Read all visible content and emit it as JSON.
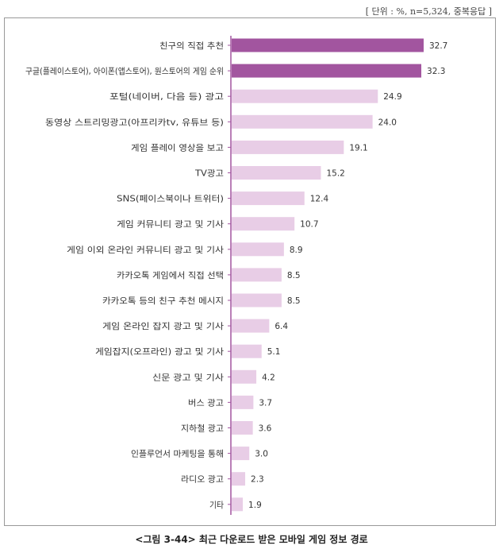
{
  "unit_note": "[ 단위 : %, n=5,324, 중복응답 ]",
  "caption": "<그림 3-44> 최근 다운로드 받은 모바일 게임 정보 경로",
  "colors": {
    "highlight": "#a2559f",
    "normal": "#e8cde6",
    "axis": "#a2559f"
  },
  "chart_data": {
    "type": "bar",
    "orientation": "horizontal",
    "categories": [
      "친구의 직접 추천",
      "구글(플레이스토어), 아이폰(앱스토어), 원스토어의 게임 순위",
      "포털(네이버, 다음 등) 광고",
      "동영상 스트리밍광고(아프리카tv, 유튜브 등)",
      "게임 플레이 영상을 보고",
      "TV광고",
      "SNS(페이스북이나 트위터)",
      "게임 커뮤니티 광고 및 기사",
      "게임 이외 온라인 커뮤니티 광고 및 기사",
      "카카오톡 게임에서 직접 선택",
      "카카오톡 등의 친구 추천 메시지",
      "게임 온라인 잡지 광고 및 기사",
      "게임잡지(오프라인) 광고 및 기사",
      "신문 광고 및 기사",
      "버스 광고",
      "지하철 광고",
      "인플루언서 마케팅을 통해",
      "라디오 광고",
      "기타"
    ],
    "values": [
      32.7,
      32.3,
      24.9,
      24.0,
      19.1,
      15.2,
      12.4,
      10.7,
      8.9,
      8.5,
      8.5,
      6.4,
      5.1,
      4.2,
      3.7,
      3.6,
      3.0,
      2.3,
      1.9
    ],
    "value_labels": [
      "32.7",
      "32.3",
      "24.9",
      "24.0",
      "19.1",
      "15.2",
      "12.4",
      "10.7",
      "8.9",
      "8.5",
      "8.5",
      "6.4",
      "5.1",
      "4.2",
      "3.7",
      "3.6",
      "3.0",
      "2.3",
      "1.9"
    ],
    "highlighted_count": 2,
    "xlim": [
      0,
      40
    ],
    "grid": false,
    "legend": "none"
  }
}
